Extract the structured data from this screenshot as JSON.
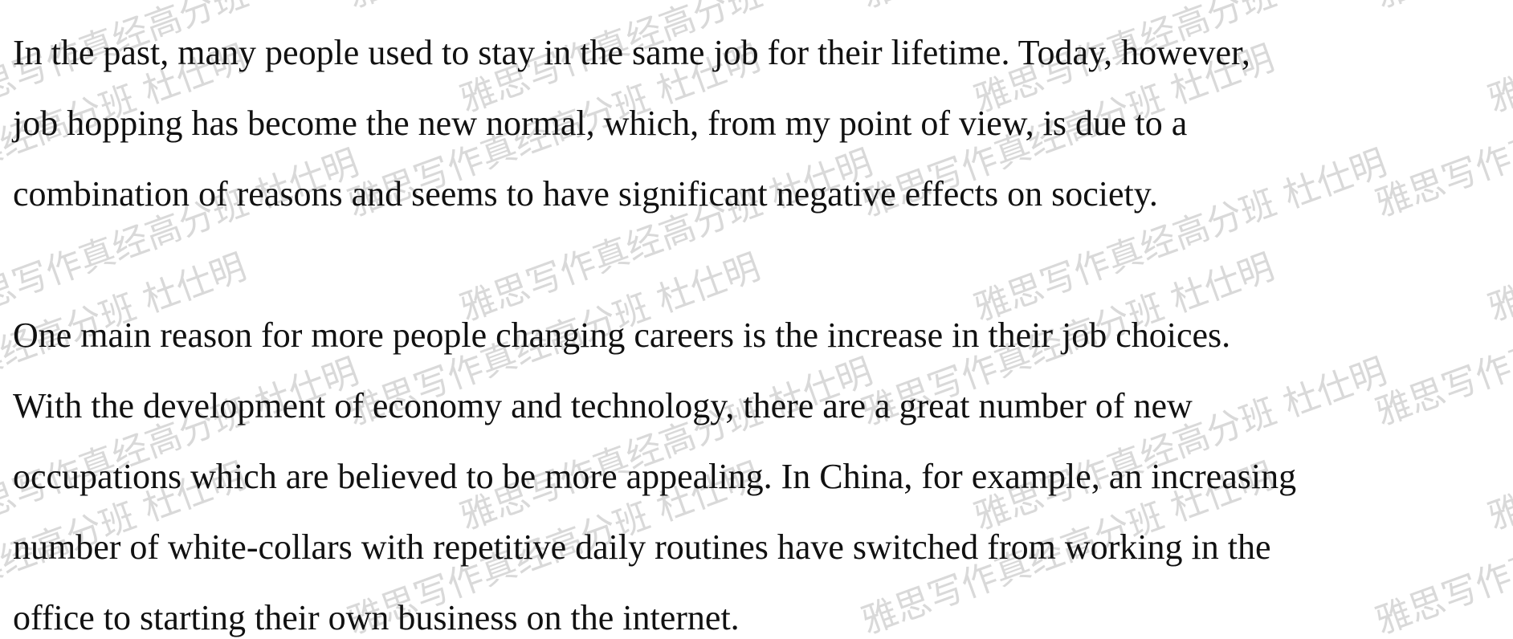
{
  "document": {
    "paragraphs": [
      {
        "lines": [
          "In the past, many people used to stay in the same job for their lifetime. Today, however,",
          "job hopping has become the new normal, which, from my point of view, is due to a",
          "combination of reasons and seems to have significant negative effects on society."
        ]
      },
      {
        "lines": [
          "One main reason for more people changing careers is the increase in their job choices.",
          "With the development of economy and technology, there are a great number of new",
          "occupations which are believed to be more appealing. In China, for example, an increasing",
          "number of white-collars with repetitive daily routines have switched from working in the",
          "office to starting their own business on the internet."
        ]
      }
    ]
  },
  "watermark": {
    "text": "雅思写作真经高分班 杜仕明",
    "color": "#d9d9d9"
  }
}
